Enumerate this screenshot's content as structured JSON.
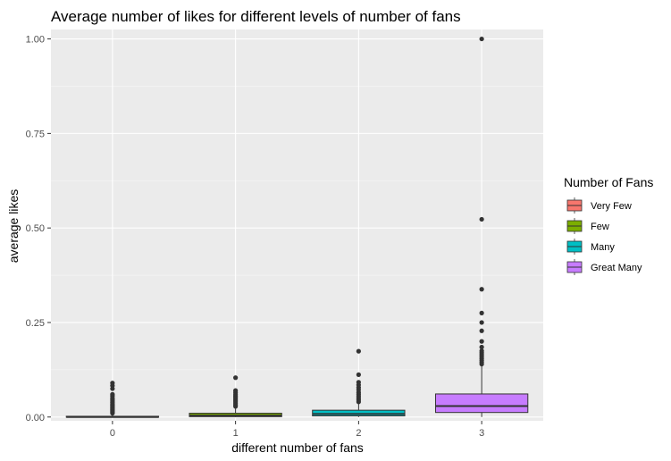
{
  "chart_data": {
    "type": "box",
    "title": "Average number of likes for different levels of number of fans",
    "xlabel": "different number of fans",
    "ylabel": "average likes",
    "categories": [
      "0",
      "1",
      "2",
      "3"
    ],
    "ylim": [
      -0.01,
      1.025
    ],
    "yticks": [
      0.0,
      0.25,
      0.5,
      0.75,
      1.0
    ],
    "ytick_labels": [
      "0.00",
      "0.25",
      "0.50",
      "0.75",
      "1.00"
    ],
    "grid": true,
    "legend": {
      "title": "Number of Fans",
      "placement": "right",
      "entries": [
        "Very Few",
        "Few",
        "Many",
        "Great Many"
      ]
    },
    "colors": [
      "#F8766D",
      "#7CAE00",
      "#00BFC4",
      "#C77CFF"
    ],
    "boxes": [
      {
        "category": "0",
        "group": "Very Few",
        "whisker_low": 0.0,
        "q1": 0.0,
        "median": 0.0,
        "q3": 0.002,
        "whisker_high": 0.005,
        "outliers": [
          0.01,
          0.013,
          0.016,
          0.019,
          0.022,
          0.025,
          0.028,
          0.031,
          0.034,
          0.038,
          0.042,
          0.046,
          0.05,
          0.056,
          0.06,
          0.075,
          0.083,
          0.09
        ]
      },
      {
        "category": "1",
        "group": "Few",
        "whisker_low": 0.0,
        "q1": 0.001,
        "median": 0.004,
        "q3": 0.01,
        "whisker_high": 0.022,
        "outliers": [
          0.028,
          0.032,
          0.036,
          0.04,
          0.044,
          0.048,
          0.052,
          0.056,
          0.06,
          0.065,
          0.07,
          0.104
        ]
      },
      {
        "category": "2",
        "group": "Many",
        "whisker_low": 0.0,
        "q1": 0.003,
        "median": 0.008,
        "q3": 0.018,
        "whisker_high": 0.035,
        "outliers": [
          0.04,
          0.045,
          0.05,
          0.055,
          0.06,
          0.065,
          0.072,
          0.078,
          0.085,
          0.092,
          0.112,
          0.174
        ]
      },
      {
        "category": "3",
        "group": "Great Many",
        "whisker_low": 0.0,
        "q1": 0.012,
        "median": 0.029,
        "q3": 0.061,
        "whisker_high": 0.135,
        "outliers": [
          0.14,
          0.145,
          0.15,
          0.155,
          0.16,
          0.165,
          0.17,
          0.175,
          0.185,
          0.2,
          0.228,
          0.25,
          0.275,
          0.338,
          0.523,
          1.0
        ]
      }
    ]
  }
}
